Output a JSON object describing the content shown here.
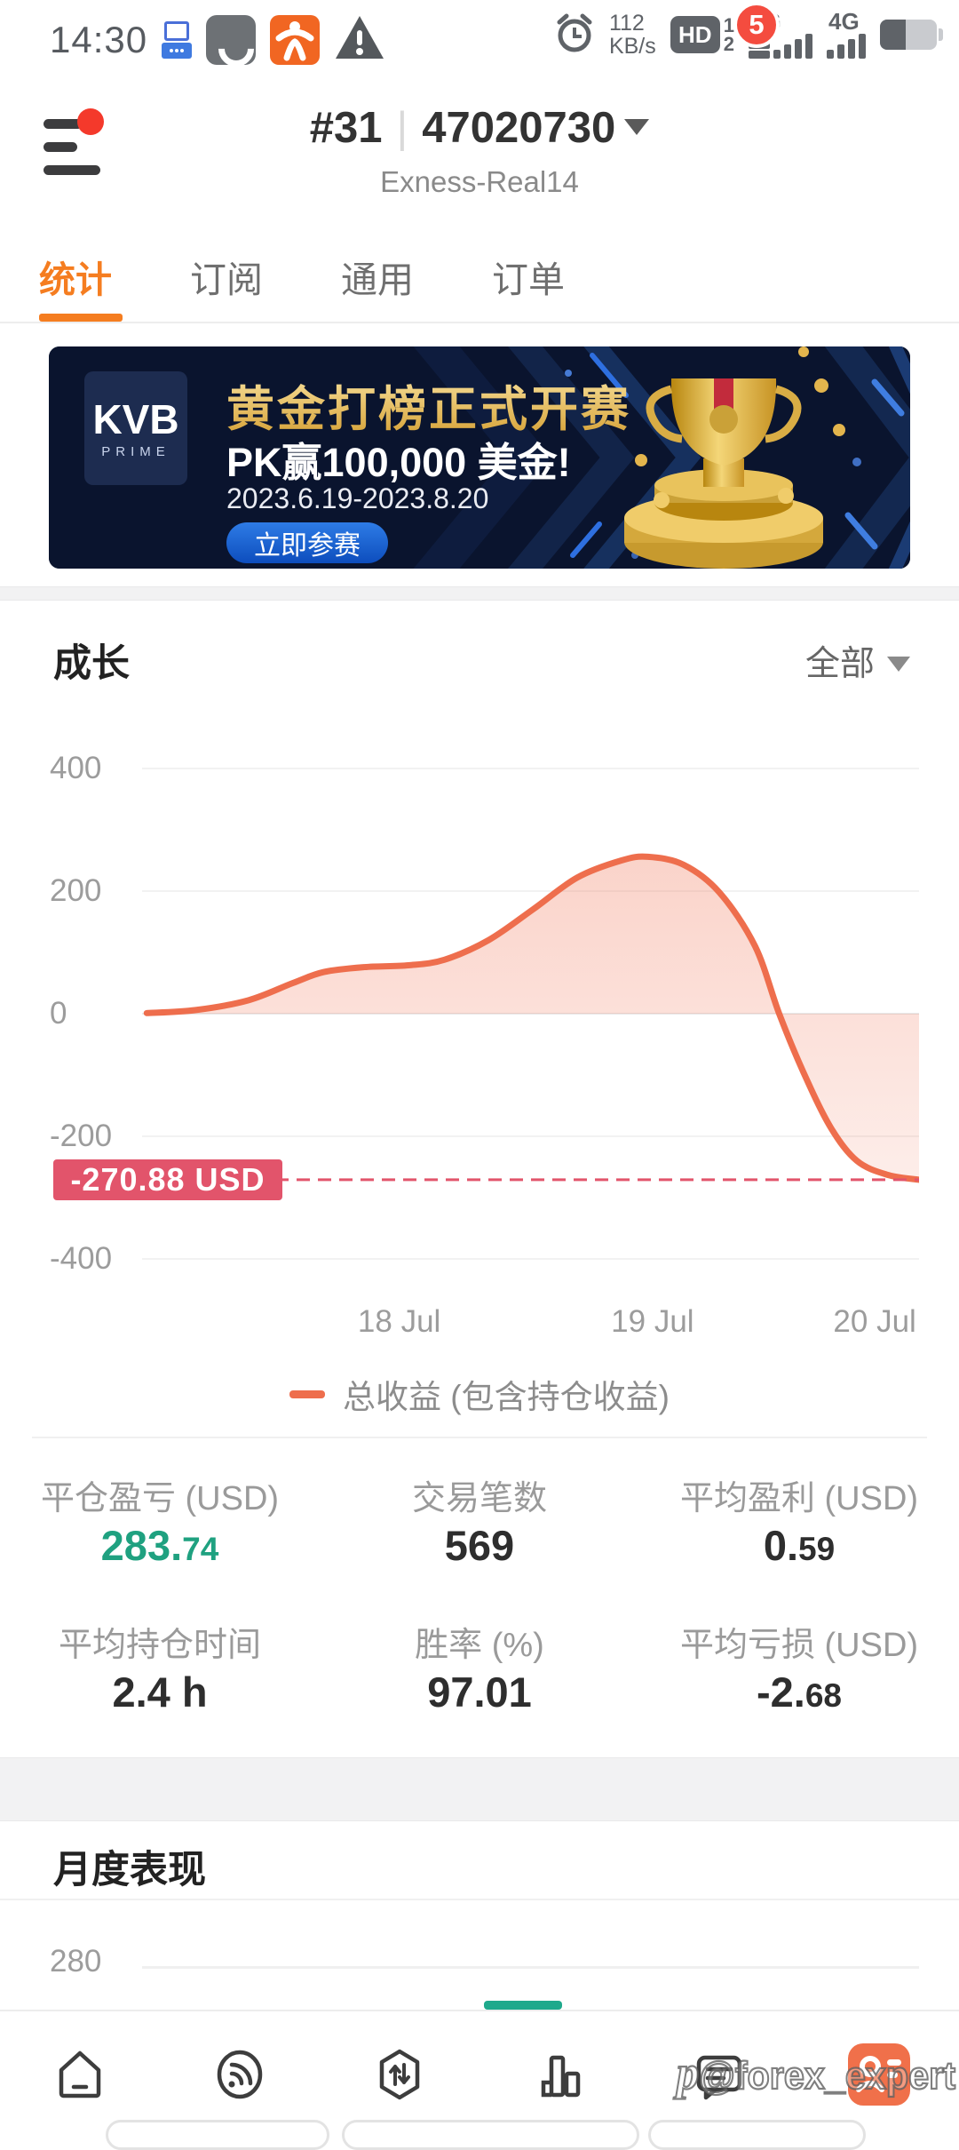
{
  "status_bar": {
    "time": "14:30",
    "download_speed": "112",
    "speed_unit": "KB/s",
    "hd_label": "HD",
    "sim1": "1",
    "sim2": "2",
    "network1": "4G",
    "network2": "4G"
  },
  "header": {
    "position_number": "#31",
    "account_id": "47020730",
    "server": "Exness-Real14"
  },
  "tabs": [
    {
      "label": "统计",
      "active": true
    },
    {
      "label": "订阅",
      "active": false
    },
    {
      "label": "通用",
      "active": false
    },
    {
      "label": "订单",
      "active": false
    }
  ],
  "banner": {
    "brand": "KVB",
    "brand_sub": "PRIME",
    "title": "黄金打榜正式开赛",
    "subtitle": "PK赢100,000 美金!",
    "dates": "2023.6.19-2023.8.20",
    "cta": "立即参赛"
  },
  "growth_section": {
    "title": "成长",
    "filter": "全部"
  },
  "chart_data": [
    {
      "type": "area",
      "section_title": "成长",
      "series": [
        {
          "name": "总收益 (包含持仓收益)",
          "color": "#ee6e4d",
          "points": [
            {
              "x": 0.6,
              "y": 1
            },
            {
              "x": 6.9,
              "y": 6
            },
            {
              "x": 13.7,
              "y": 22
            },
            {
              "x": 19.4,
              "y": 50
            },
            {
              "x": 23.4,
              "y": 68
            },
            {
              "x": 28.6,
              "y": 76
            },
            {
              "x": 34.3,
              "y": 79
            },
            {
              "x": 38.9,
              "y": 88
            },
            {
              "x": 44.6,
              "y": 120
            },
            {
              "x": 50.3,
              "y": 170
            },
            {
              "x": 56.0,
              "y": 222
            },
            {
              "x": 61.7,
              "y": 250
            },
            {
              "x": 65.1,
              "y": 256
            },
            {
              "x": 69.7,
              "y": 243
            },
            {
              "x": 74.3,
              "y": 198
            },
            {
              "x": 78.9,
              "y": 110
            },
            {
              "x": 82.0,
              "y": 0
            },
            {
              "x": 85.1,
              "y": -95
            },
            {
              "x": 88.6,
              "y": -185
            },
            {
              "x": 92.0,
              "y": -240
            },
            {
              "x": 96.0,
              "y": -263
            },
            {
              "x": 100,
              "y": -270.88
            }
          ]
        }
      ],
      "yticks": [
        400,
        200,
        0,
        -200,
        -400
      ],
      "xticks": [
        {
          "label": "18 Jul",
          "x": 33.1
        },
        {
          "label": "19 Jul",
          "x": 65.7
        },
        {
          "label": "20 Jul",
          "x": 94.3
        }
      ],
      "ylim": [
        -430,
        420
      ],
      "grid": true,
      "legend_position": "bottom",
      "annotation": {
        "label": "-270.88 USD",
        "value": -270.88,
        "bg": "#e2546b"
      }
    },
    {
      "type": "bar",
      "section_title": "月度表现",
      "visible_ytick": "280",
      "bar_color": "#1fa98c"
    }
  ],
  "legend": {
    "marker_color": "#ee6e4d",
    "label": "总收益 (包含持仓收益)"
  },
  "stats": [
    {
      "label": "平仓盈亏 (USD)",
      "value_main": "283.",
      "value_small": "74",
      "color": "#1fa180"
    },
    {
      "label": "交易笔数",
      "value_main": "569",
      "value_small": ""
    },
    {
      "label": "平均盈利 (USD)",
      "value_main": "0.",
      "value_small": "59"
    },
    {
      "label": "平均持仓时间",
      "value_main": "2.4 h",
      "value_small": ""
    },
    {
      "label": "胜率 (%)",
      "value_main": "97.01",
      "value_small": ""
    },
    {
      "label": "平均亏损 (USD)",
      "value_main": "-2.",
      "value_small": "68"
    }
  ],
  "monthly_section": {
    "title": "月度表现"
  },
  "nav": {
    "badge": "5"
  },
  "watermark": {
    "prefix": "p",
    "text": "@forex_expert"
  },
  "colors": {
    "accent_orange": "#f57d20",
    "chart_line": "#ee6e4d",
    "loss_red": "#e2546b",
    "profit_teal": "#1fa180",
    "monthly_teal": "#1fa98c",
    "banner_navy": "#0a142e"
  }
}
